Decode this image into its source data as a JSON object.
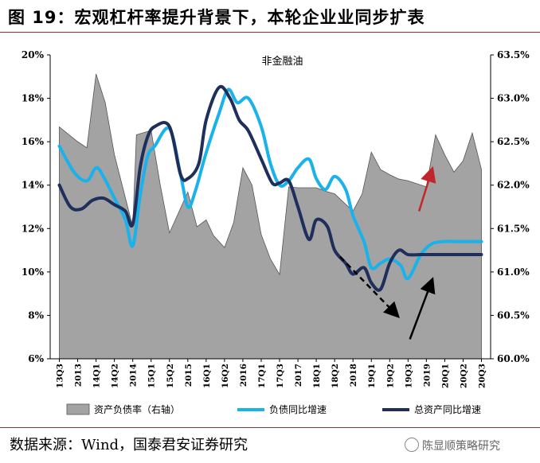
{
  "header": {
    "title": "图 19：宏观杠杆率提升背景下，本轮企业业同步扩表"
  },
  "footer": {
    "source": "数据来源：Wind，国泰君安证券研究",
    "watermark": "陈显顺策略研究"
  },
  "colors": {
    "area": "#a3a3a3",
    "liabilities": "#19b2ea",
    "assets": "#1f2f5c",
    "red_arrow": "#c0262c",
    "black_arrow": "#000000"
  },
  "chart_data": {
    "type": "line+area",
    "title": "非金融油",
    "categories": [
      "13Q3",
      "2013",
      "14Q1",
      "14Q2",
      "2014",
      "15Q1",
      "15Q2",
      "2015",
      "16Q1",
      "16Q2",
      "2016",
      "17Q1",
      "17Q3",
      "2017",
      "18Q1",
      "18Q2",
      "2018",
      "19Q1",
      "19Q2",
      "19Q3",
      "2019",
      "20Q1",
      "20Q2",
      "20Q3"
    ],
    "left_axis": {
      "ylim": [
        6,
        20
      ],
      "ticks": [
        6,
        8,
        10,
        12,
        14,
        16,
        18,
        20
      ],
      "tick_labels": [
        "6%",
        "8%",
        "10%",
        "12%",
        "14%",
        "16%",
        "18%",
        "20%"
      ]
    },
    "right_axis": {
      "ylim": [
        60.0,
        63.5
      ],
      "ticks": [
        60.0,
        60.5,
        61.0,
        61.5,
        62.0,
        62.5,
        63.0,
        63.5
      ],
      "tick_labels": [
        "60.0%",
        "60.5%",
        "61.0%",
        "61.5%",
        "62.0%",
        "62.5%",
        "63.0%",
        "63.5%"
      ]
    },
    "series": [
      {
        "name": "资产负债率（右轴）",
        "type": "area",
        "axis": "right",
        "x": [
          0,
          1,
          1.5,
          2,
          2.5,
          3,
          4,
          4.2,
          5,
          5.5,
          6,
          7,
          7.5,
          8,
          8.4,
          9,
          9.5,
          10,
          10.5,
          11,
          11.5,
          12,
          12.5,
          13,
          13.5,
          14,
          14.5,
          15,
          16,
          16.5,
          17,
          17.5,
          18,
          18.5,
          19,
          20,
          20.5,
          21,
          21.5,
          22,
          22.5,
          23
        ],
        "values": [
          62.67,
          62.5,
          62.43,
          63.28,
          62.95,
          62.35,
          61.52,
          62.58,
          62.63,
          62.0,
          61.45,
          61.92,
          61.52,
          61.6,
          61.42,
          61.28,
          61.57,
          62.2,
          62.0,
          61.43,
          61.15,
          60.97,
          61.98,
          61.97,
          61.97,
          61.97,
          61.93,
          61.9,
          61.7,
          61.9,
          62.38,
          62.18,
          62.12,
          62.07,
          62.05,
          61.98,
          62.58,
          62.35,
          62.15,
          62.28,
          62.6,
          62.18
        ]
      },
      {
        "name": "负债同比增速",
        "type": "line",
        "axis": "left",
        "x": [
          0,
          0.8,
          1.5,
          2,
          2.4,
          3,
          3.6,
          4,
          4.4,
          4.8,
          5.2,
          6,
          6.6,
          7,
          7.4,
          8,
          8.7,
          9.2,
          9.7,
          10.3,
          11,
          11.5,
          12,
          12.5,
          13,
          13.6,
          14,
          14.5,
          15,
          15.6,
          16,
          16.6,
          17,
          17.5,
          18,
          18.6,
          19,
          19.7,
          20.3,
          21,
          21.5,
          22,
          22.6,
          23
        ],
        "values": [
          15.8,
          14.6,
          14.2,
          14.8,
          14.4,
          13.4,
          12.4,
          11.2,
          13.5,
          15.3,
          15.8,
          16.6,
          14.5,
          13.0,
          13.7,
          15.5,
          17.3,
          18.4,
          17.8,
          18.0,
          16.7,
          15.0,
          14.0,
          14.2,
          14.8,
          15.2,
          14.3,
          13.8,
          14.4,
          13.8,
          12.6,
          11.4,
          10.2,
          10.4,
          10.6,
          10.3,
          9.7,
          10.8,
          11.3,
          11.4,
          11.4,
          11.4,
          11.4,
          11.4
        ]
      },
      {
        "name": "总资产同比增速",
        "type": "line",
        "axis": "left",
        "x": [
          0,
          0.6,
          1.2,
          1.8,
          2.4,
          3,
          3.6,
          4,
          4.4,
          4.8,
          5.2,
          6,
          6.6,
          7,
          7.6,
          8,
          8.7,
          9.3,
          9.8,
          10.3,
          11,
          11.6,
          12,
          12.5,
          13,
          13.6,
          14,
          14.6,
          15,
          15.6,
          16,
          16.6,
          17,
          17.5,
          18,
          18.5,
          19,
          19.7,
          20.3,
          21,
          21.5,
          22,
          22.6,
          23
        ],
        "values": [
          14.0,
          13.0,
          12.9,
          13.3,
          13.4,
          13.1,
          12.8,
          12.2,
          14.8,
          16.2,
          16.7,
          16.7,
          14.5,
          14.3,
          15.0,
          17.0,
          18.5,
          18.0,
          17.0,
          16.5,
          15.2,
          14.1,
          14.1,
          14.2,
          13.0,
          11.5,
          12.4,
          12.1,
          11.0,
          10.4,
          9.9,
          10.2,
          9.5,
          9.2,
          10.4,
          11.0,
          10.8,
          10.8,
          10.8,
          10.8,
          10.8,
          10.8,
          10.8,
          10.8
        ]
      }
    ],
    "annotations": [
      {
        "type": "arrow",
        "color": "red",
        "from": [
          19.6,
          12.8
        ],
        "to": [
          20.3,
          14.7
        ],
        "direction": "up"
      },
      {
        "type": "arrow",
        "color": "black",
        "style": "dashed",
        "from": [
          15.3,
          10.7
        ],
        "to": [
          18.4,
          8.0
        ],
        "direction": "down"
      },
      {
        "type": "arrow",
        "color": "black",
        "from": [
          19.1,
          6.9
        ],
        "to": [
          20.3,
          9.6
        ],
        "direction": "up"
      }
    ],
    "legend": [
      "资产负债率（右轴）",
      "负债同比增速",
      "总资产同比增速"
    ],
    "legend_position": "bottom",
    "grid": false
  }
}
